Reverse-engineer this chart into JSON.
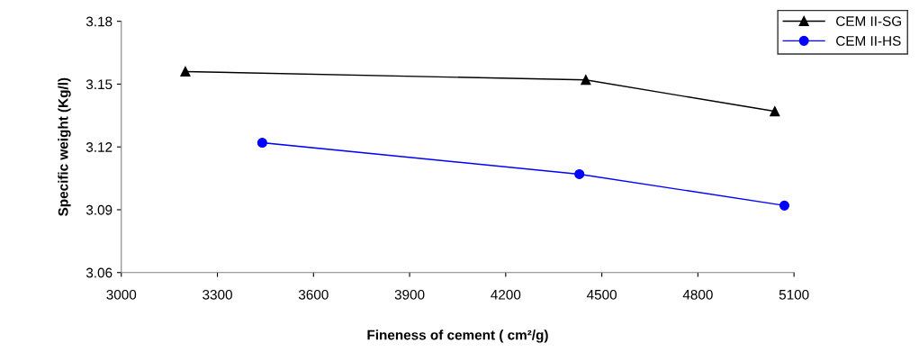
{
  "chart_data": {
    "type": "line",
    "xlabel": "Fineness of cement ( cm²/g)",
    "ylabel": "Specific weight (Kg/l)",
    "series": [
      {
        "name": "CEM II-SG",
        "color": "#000000",
        "marker": "triangle",
        "x": [
          3200,
          4450,
          5040
        ],
        "values": [
          3.156,
          3.152,
          3.137
        ]
      },
      {
        "name": "CEM II-HS",
        "color": "#0000ff",
        "marker": "circle",
        "x": [
          3440,
          4430,
          5070
        ],
        "values": [
          3.122,
          3.107,
          3.092
        ]
      }
    ],
    "xlim": [
      3000,
      5100
    ],
    "xticks": [
      3000,
      3300,
      3600,
      3900,
      4200,
      4500,
      4800,
      5100
    ],
    "ylim": [
      3.06,
      3.18
    ],
    "yticks": [
      3.06,
      3.09,
      3.12,
      3.15,
      3.18
    ],
    "grid": false,
    "legend": "top right",
    "line_style": "solid"
  }
}
